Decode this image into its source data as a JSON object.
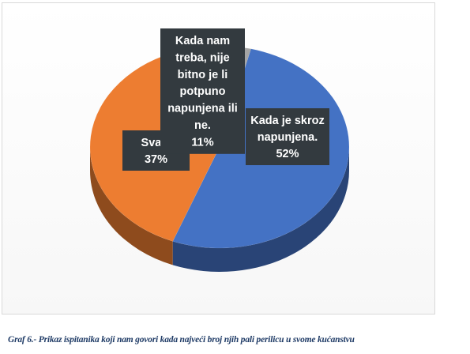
{
  "chart_data": {
    "type": "pie",
    "title": "",
    "slices": [
      {
        "label_lines": [
          "Kada je skroz",
          "napunjena."
        ],
        "value_text": "52%",
        "value": 52,
        "color": "#4472c4"
      },
      {
        "label_lines": [
          "Svaki"
        ],
        "value_text": "37%",
        "value": 37,
        "color": "#ed7d31"
      },
      {
        "label_lines": [
          "Kada nam",
          "treba, nije",
          "bitno je li",
          "potpuno",
          "napunjena ili",
          "ne."
        ],
        "value_text": "11%",
        "value": 11,
        "color": "#a5a5a5"
      }
    ],
    "style": "3d-pie",
    "legend": "none"
  },
  "caption": "Graf 6.- Prikaz ispitanika koji nam govori kada najveći broj njih pali perilicu u svome kućanstvu"
}
